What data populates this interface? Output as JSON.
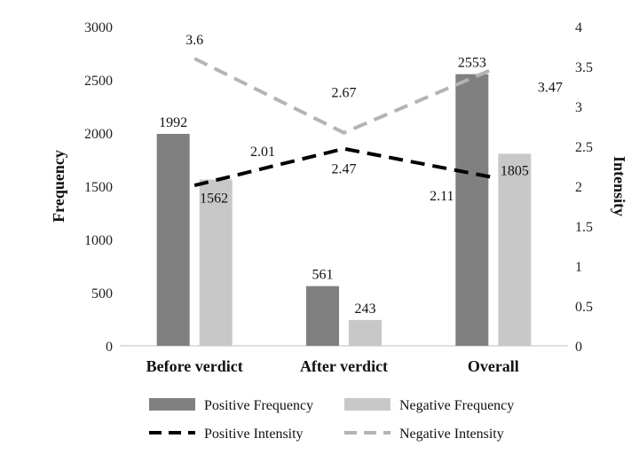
{
  "chart_data": {
    "type": "bar",
    "categories": [
      "Before verdict",
      "After verdict",
      "Overall"
    ],
    "series": [
      {
        "name": "Positive Frequency",
        "kind": "bar",
        "axis": "left",
        "color": "#808080",
        "values": [
          1992,
          561,
          2553
        ]
      },
      {
        "name": "Negative Frequency",
        "kind": "bar",
        "axis": "left",
        "color": "#c8c8c8",
        "values": [
          1562,
          243,
          1805
        ]
      },
      {
        "name": "Positive Intensity",
        "kind": "line",
        "axis": "right",
        "color": "#000000",
        "dash": "dashed",
        "values": [
          2.01,
          2.47,
          2.11
        ]
      },
      {
        "name": "Negative Intensity",
        "kind": "line",
        "axis": "right",
        "color": "#b4b4b4",
        "dash": "dashed",
        "values": [
          3.6,
          2.67,
          3.47
        ]
      }
    ],
    "ylabel": "Frequency",
    "ylabel_right": "Intensity",
    "ylim": [
      0,
      3000
    ],
    "yticks": [
      "0",
      "500",
      "1000",
      "1500",
      "2000",
      "2500",
      "3000"
    ],
    "ylim_right": [
      0,
      4
    ],
    "yticks_right": [
      "0",
      "0.5",
      "1",
      "1.5",
      "2",
      "2.5",
      "3",
      "3.5",
      "4"
    ],
    "legend_position": "bottom",
    "grid": false
  }
}
